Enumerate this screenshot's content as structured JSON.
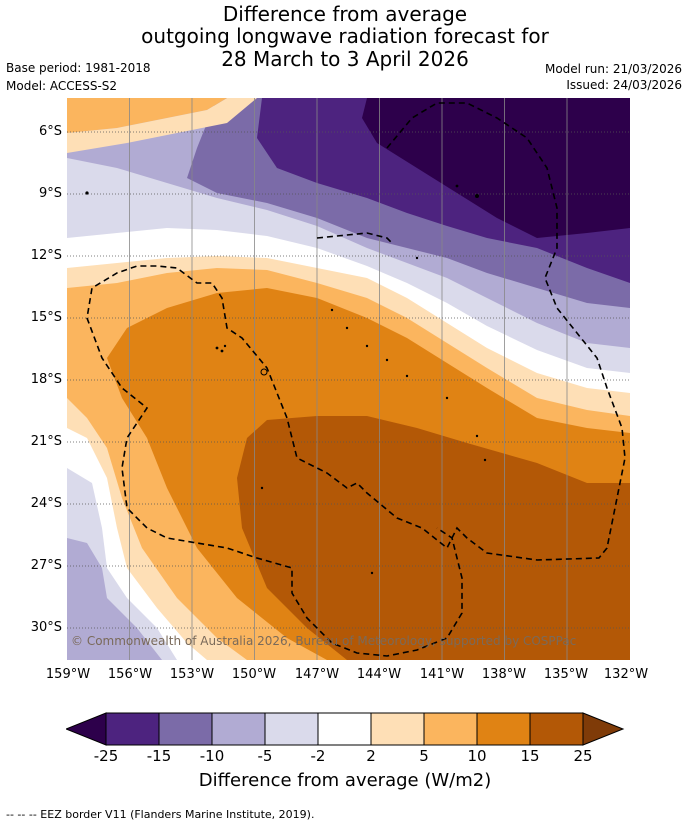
{
  "title": {
    "line1": "Difference from average",
    "line2": "outgoing longwave radiation forecast for",
    "line3": "28 March to 3 April 2026"
  },
  "meta": {
    "base_period": "Base period: 1981-2018",
    "model": "Model: ACCESS-S2",
    "model_run": "Model run: 21/03/2026",
    "issued": "Issued: 24/03/2026"
  },
  "map": {
    "lat_labels": [
      "6°S",
      "9°S",
      "12°S",
      "15°S",
      "18°S",
      "21°S",
      "24°S",
      "27°S",
      "30°S"
    ],
    "lon_labels": [
      "159°W",
      "156°W",
      "153°W",
      "150°W",
      "147°W",
      "144°W",
      "141°W",
      "138°W",
      "135°W",
      "132°W"
    ],
    "credit": "© Commonwealth of Australia 2026, Bureau of Meteorology, supported by COSPPac"
  },
  "colorbar": {
    "tick_labels": [
      "-25",
      "-15",
      "-10",
      "-5",
      "-2",
      "2",
      "5",
      "10",
      "15",
      "25"
    ],
    "colors": [
      "#4d237f",
      "#7b6ba8",
      "#b1abd3",
      "#dadaeb",
      "#ffffff",
      "#fedfb6",
      "#fbb55e",
      "#e08314",
      "#b35806"
    ],
    "under_color": "#2d004b",
    "over_color": "#7f3b08",
    "label": "Difference from average (W/m2)"
  },
  "footnote": "--  --  -- EEZ border V11 (Flanders Marine Institute, 2019)."
}
